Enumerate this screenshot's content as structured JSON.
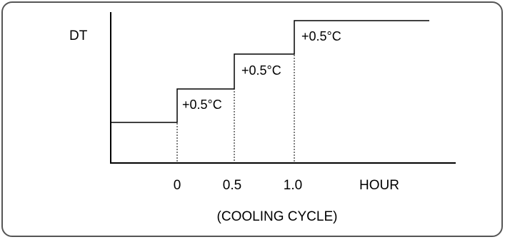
{
  "diagram": {
    "y_axis_label": "DT",
    "x_axis_label": "HOUR",
    "caption": "(COOLING CYCLE)",
    "ticks": [
      "0",
      "0.5",
      "1.0"
    ],
    "steps": [
      {
        "label": "+0.5°C"
      },
      {
        "label": "+0.5°C"
      },
      {
        "label": "+0.5°C"
      }
    ]
  }
}
